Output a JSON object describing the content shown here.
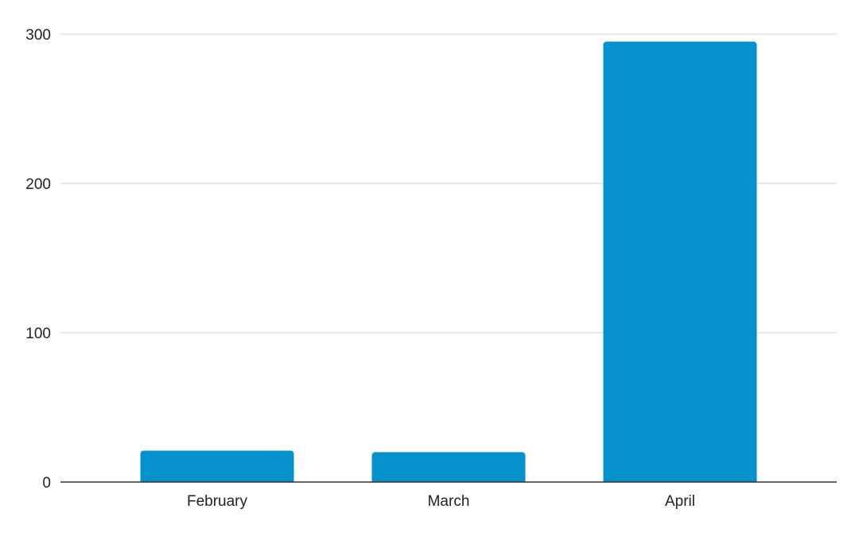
{
  "chart_data": {
    "type": "bar",
    "title": "",
    "xlabel": "",
    "ylabel": "",
    "categories": [
      "February",
      "March",
      "April"
    ],
    "values": [
      21,
      20,
      295
    ],
    "ylim": [
      0,
      300
    ],
    "yticks": [
      0,
      100,
      200,
      300
    ],
    "grid": true,
    "legend": "none",
    "colors": {
      "bar": "#0591CC",
      "gridline": "#D9D9D9",
      "axis": "#333333",
      "text": "#222222"
    }
  }
}
